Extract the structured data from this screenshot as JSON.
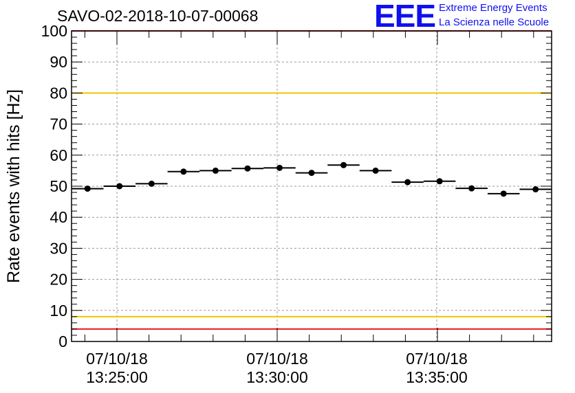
{
  "chart_data": {
    "type": "scatter",
    "title": "SAVO-02-2018-10-07-00068",
    "ylabel": "Rate events with hits [Hz]",
    "xlabel": "",
    "ylim": [
      0,
      100
    ],
    "y_ticks": [
      "0",
      "10",
      "20",
      "30",
      "40",
      "50",
      "60",
      "70",
      "80",
      "90",
      "100"
    ],
    "x_ticks": [
      {
        "date": "07/10/18",
        "time": "13:25:00"
      },
      {
        "date": "07/10/18",
        "time": "13:30:00"
      },
      {
        "date": "07/10/18",
        "time": "13:35:00"
      }
    ],
    "grid": true,
    "points": [
      {
        "y": 49.2
      },
      {
        "y": 50.0
      },
      {
        "y": 50.8
      },
      {
        "y": 54.7
      },
      {
        "y": 55.0
      },
      {
        "y": 55.7
      },
      {
        "y": 55.9
      },
      {
        "y": 54.3
      },
      {
        "y": 56.8
      },
      {
        "y": 55.0
      },
      {
        "y": 51.3
      },
      {
        "y": 51.6
      },
      {
        "y": 49.3
      },
      {
        "y": 47.6
      },
      {
        "y": 49.0
      }
    ],
    "reference_lines": [
      {
        "y": 100,
        "color": "#e8191e"
      },
      {
        "y": 80,
        "color": "#f2c400"
      },
      {
        "y": 8,
        "color": "#f2c400"
      },
      {
        "y": 4,
        "color": "#e8191e"
      }
    ],
    "marker_color": "#000000"
  },
  "logo": {
    "mark": "EEE",
    "line1": "Extreme Energy Events",
    "line2": "La Scienza nelle Scuole",
    "color": "#1010ee"
  }
}
